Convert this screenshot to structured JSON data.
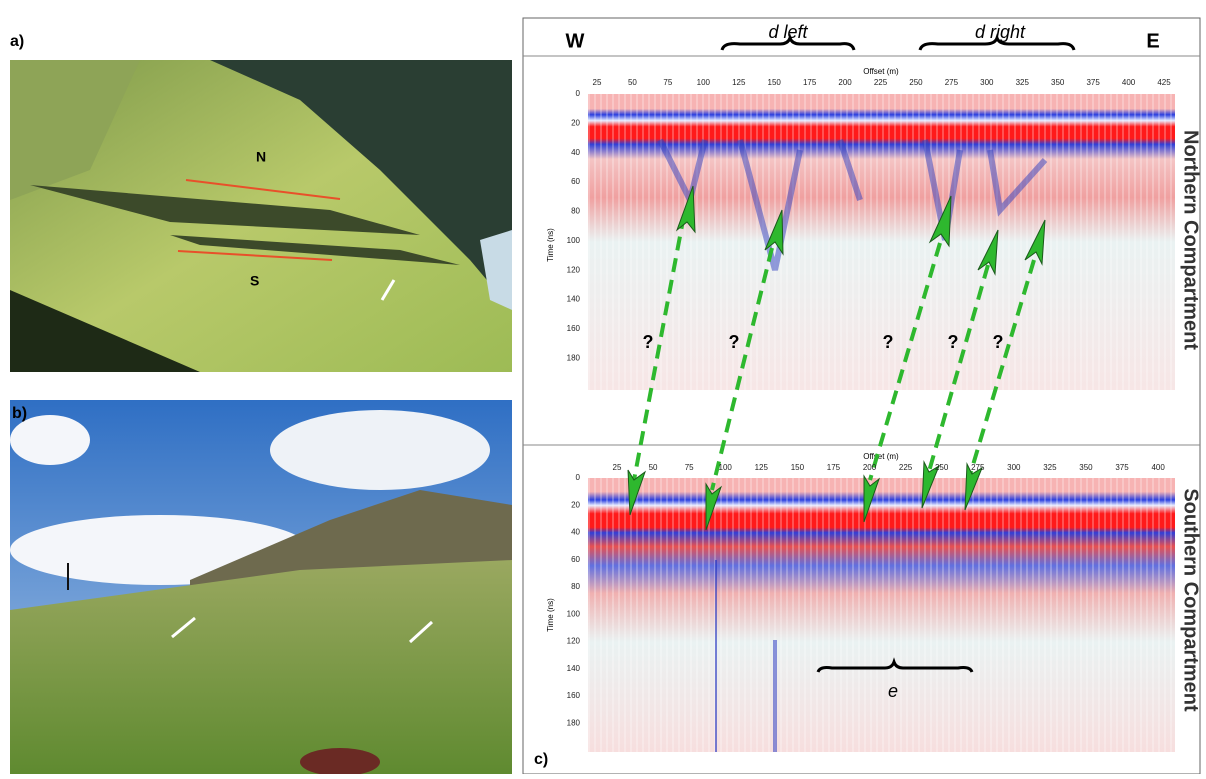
{
  "panel_labels": [
    "a)",
    "b)",
    "c)"
  ],
  "photo_a": {
    "labels": [
      "N",
      "S"
    ]
  },
  "panel_c": {
    "west": "W",
    "east": "E",
    "braces": [
      "d left",
      "d right"
    ],
    "north": {
      "title": "Northern Compartment",
      "x_label": "Offset (m)",
      "y_label": "Time (ns)",
      "x_ticks": [
        25,
        50,
        75,
        100,
        125,
        150,
        175,
        200,
        225,
        250,
        275,
        300,
        325,
        350,
        375,
        400,
        425
      ],
      "y_ticks": [
        0,
        20,
        40,
        60,
        80,
        100,
        120,
        140,
        160,
        180
      ],
      "question_marks": [
        "?",
        "?",
        "?",
        "?",
        "?"
      ]
    },
    "south": {
      "title": "Southern Compartment",
      "x_label": "Offset (m)",
      "y_label": "Time (ns)",
      "x_ticks": [
        25,
        50,
        75,
        100,
        125,
        150,
        175,
        200,
        225,
        250,
        275,
        300,
        325,
        350,
        375,
        400
      ],
      "y_ticks": [
        0,
        20,
        40,
        60,
        80,
        100,
        120,
        140,
        160,
        180
      ],
      "brace": "e"
    }
  }
}
